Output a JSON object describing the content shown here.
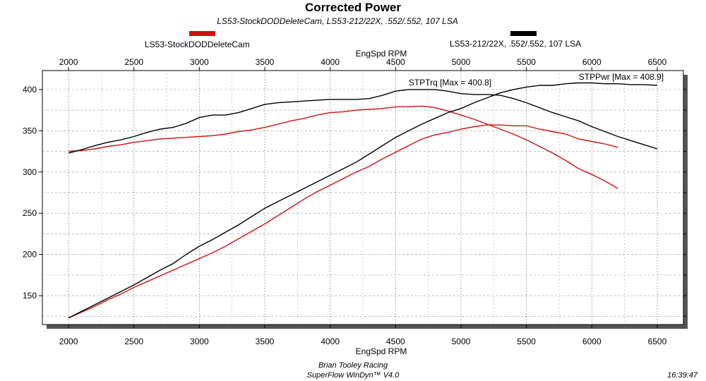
{
  "header": {
    "title": "Corrected Power",
    "subtitle": "LS53-StockDODDeleteCam, LS53-212/22X, .552/.552, 107 LSA"
  },
  "legend": [
    {
      "label": "LS53-StockDODDeleteCam",
      "color": "#d01010"
    },
    {
      "label": "LS53-212/22X, .552/.552, 107 LSA",
      "color": "#000000"
    }
  ],
  "footer": {
    "line1": "Brian Tooley Racing",
    "line2": "SuperFlow WinDyn™ V4.0",
    "time": "16:39:47"
  },
  "chart_data": {
    "type": "line",
    "title": "Corrected Power",
    "xlabel": "EngSpd RPM",
    "ylabel": "",
    "xlim": [
      1800,
      6700
    ],
    "ylim": [
      115,
      423
    ],
    "xticks": [
      2000,
      2500,
      3000,
      3500,
      4000,
      4500,
      5000,
      5500,
      6000,
      6500
    ],
    "yticks": [
      150,
      200,
      250,
      300,
      350,
      400
    ],
    "grid": true,
    "legend_position": "top",
    "annotations": [
      {
        "text": "STPTrq [Max = 400.8]",
        "x": 4600,
        "y": 405
      },
      {
        "text": "STPPwr [Max = 408.9]",
        "x": 5900,
        "y": 412
      }
    ],
    "series": [
      {
        "name": "LS53-StockDODDeleteCam",
        "color": "#d01010",
        "metric": "STPTrq",
        "x": [
          2000,
          2100,
          2200,
          2300,
          2400,
          2500,
          2600,
          2700,
          2800,
          2900,
          3000,
          3100,
          3200,
          3300,
          3400,
          3500,
          3600,
          3700,
          3800,
          3900,
          4000,
          4100,
          4200,
          4300,
          4400,
          4500,
          4600,
          4700,
          4800,
          4900,
          5000,
          5100,
          5200,
          5300,
          5400,
          5500,
          5600,
          5700,
          5800,
          5900,
          6000,
          6100,
          6200
        ],
        "y": [
          325,
          326,
          328,
          331,
          333,
          336,
          338,
          340,
          341,
          342,
          343,
          344,
          346,
          349,
          351,
          354,
          358,
          362,
          365,
          369,
          372,
          373,
          375,
          376,
          377,
          379,
          379,
          380,
          378,
          374,
          369,
          364,
          358,
          352,
          346,
          339,
          331,
          323,
          314,
          304,
          297,
          289,
          280
        ]
      },
      {
        "name": "LS53-StockDODDeleteCam",
        "color": "#d01010",
        "metric": "STPPwr",
        "x": [
          2000,
          2100,
          2200,
          2300,
          2400,
          2500,
          2600,
          2700,
          2800,
          2900,
          3000,
          3100,
          3200,
          3300,
          3400,
          3500,
          3600,
          3700,
          3800,
          3900,
          4000,
          4100,
          4200,
          4300,
          4400,
          4500,
          4600,
          4700,
          4800,
          4900,
          5000,
          5100,
          5200,
          5300,
          5400,
          5500,
          5600,
          5700,
          5800,
          5900,
          6000,
          6100,
          6200
        ],
        "y": [
          123,
          130,
          137,
          145,
          152,
          160,
          167,
          174,
          181,
          188,
          195,
          202,
          210,
          219,
          228,
          237,
          247,
          257,
          267,
          276,
          284,
          292,
          300,
          307,
          316,
          324,
          332,
          340,
          345,
          348,
          352,
          355,
          357,
          357,
          356,
          356,
          352,
          349,
          346,
          340,
          337,
          334,
          330
        ]
      },
      {
        "name": "LS53-212/22X, .552/.552, 107 LSA",
        "color": "#000000",
        "metric": "STPTrq",
        "x": [
          2000,
          2100,
          2200,
          2300,
          2400,
          2500,
          2600,
          2700,
          2800,
          2900,
          3000,
          3100,
          3200,
          3300,
          3400,
          3500,
          3600,
          3700,
          3800,
          3900,
          4000,
          4100,
          4200,
          4300,
          4400,
          4500,
          4600,
          4700,
          4800,
          4900,
          5000,
          5100,
          5200,
          5300,
          5400,
          5500,
          5600,
          5700,
          5800,
          5900,
          6000,
          6100,
          6200,
          6300,
          6400,
          6500
        ],
        "y": [
          323,
          327,
          332,
          336,
          339,
          343,
          348,
          352,
          354,
          359,
          366,
          369,
          369,
          372,
          377,
          382,
          384,
          385,
          386,
          387,
          388,
          388,
          388,
          389,
          393,
          398,
          400,
          400,
          400,
          398,
          395,
          394,
          394,
          393,
          389,
          384,
          378,
          372,
          367,
          362,
          355,
          349,
          343,
          338,
          333,
          328
        ]
      },
      {
        "name": "LS53-212/22X, .552/.552, 107 LSA",
        "color": "#000000",
        "metric": "STPPwr",
        "x": [
          2000,
          2100,
          2200,
          2300,
          2400,
          2500,
          2600,
          2700,
          2800,
          2900,
          3000,
          3100,
          3200,
          3300,
          3400,
          3500,
          3600,
          3700,
          3800,
          3900,
          4000,
          4100,
          4200,
          4300,
          4400,
          4500,
          4600,
          4700,
          4800,
          4900,
          5000,
          5100,
          5200,
          5300,
          5400,
          5500,
          5600,
          5700,
          5800,
          5900,
          6000,
          6100,
          6200,
          6300,
          6400,
          6500
        ],
        "y": [
          123,
          131,
          139,
          147,
          155,
          163,
          172,
          181,
          189,
          200,
          210,
          218,
          227,
          236,
          246,
          256,
          264,
          272,
          280,
          288,
          296,
          304,
          312,
          322,
          332,
          342,
          350,
          358,
          365,
          372,
          377,
          384,
          390,
          396,
          400,
          403,
          405,
          405,
          407,
          408,
          408,
          407,
          407,
          406,
          406,
          405
        ]
      }
    ]
  }
}
